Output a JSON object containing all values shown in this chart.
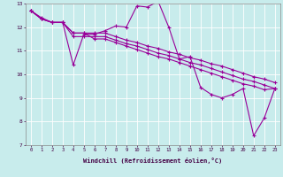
{
  "title": "",
  "xlabel": "Windchill (Refroidissement éolien,°C)",
  "ylabel": "",
  "xlim": [
    -0.5,
    23.5
  ],
  "ylim": [
    7,
    13
  ],
  "xticks": [
    0,
    1,
    2,
    3,
    4,
    5,
    6,
    7,
    8,
    9,
    10,
    11,
    12,
    13,
    14,
    15,
    16,
    17,
    18,
    19,
    20,
    21,
    22,
    23
  ],
  "yticks": [
    7,
    8,
    9,
    10,
    11,
    12,
    13
  ],
  "bg_color": "#c8ecec",
  "line_color": "#990099",
  "line_width": 0.8,
  "marker": "+",
  "marker_size": 3,
  "marker_edge_width": 0.8,
  "tick_fontsize": 4.0,
  "xlabel_fontsize": 5.0,
  "ylabel_fontsize": 5.0,
  "series": [
    [
      12.7,
      12.4,
      12.2,
      12.2,
      10.4,
      11.7,
      11.7,
      11.85,
      12.05,
      12.0,
      12.9,
      12.85,
      13.1,
      12.0,
      10.65,
      10.75,
      9.45,
      9.15,
      9.0,
      9.15,
      9.4,
      7.4,
      8.15,
      9.4
    ],
    [
      12.7,
      12.35,
      12.2,
      12.2,
      11.75,
      11.75,
      11.75,
      11.75,
      11.6,
      11.45,
      11.35,
      11.2,
      11.1,
      10.95,
      10.85,
      10.7,
      10.6,
      10.45,
      10.35,
      10.2,
      10.05,
      9.9,
      9.8,
      9.65
    ],
    [
      12.7,
      12.35,
      12.2,
      12.2,
      11.75,
      11.75,
      11.5,
      11.5,
      11.35,
      11.2,
      11.05,
      10.9,
      10.75,
      10.65,
      10.5,
      10.35,
      10.2,
      10.05,
      9.9,
      9.75,
      9.6,
      9.5,
      9.35,
      9.4
    ],
    [
      12.7,
      12.35,
      12.2,
      12.2,
      11.6,
      11.6,
      11.6,
      11.6,
      11.45,
      11.3,
      11.2,
      11.05,
      10.9,
      10.8,
      10.65,
      10.5,
      10.4,
      10.25,
      10.1,
      9.95,
      9.8,
      9.7,
      9.55,
      9.4
    ]
  ]
}
